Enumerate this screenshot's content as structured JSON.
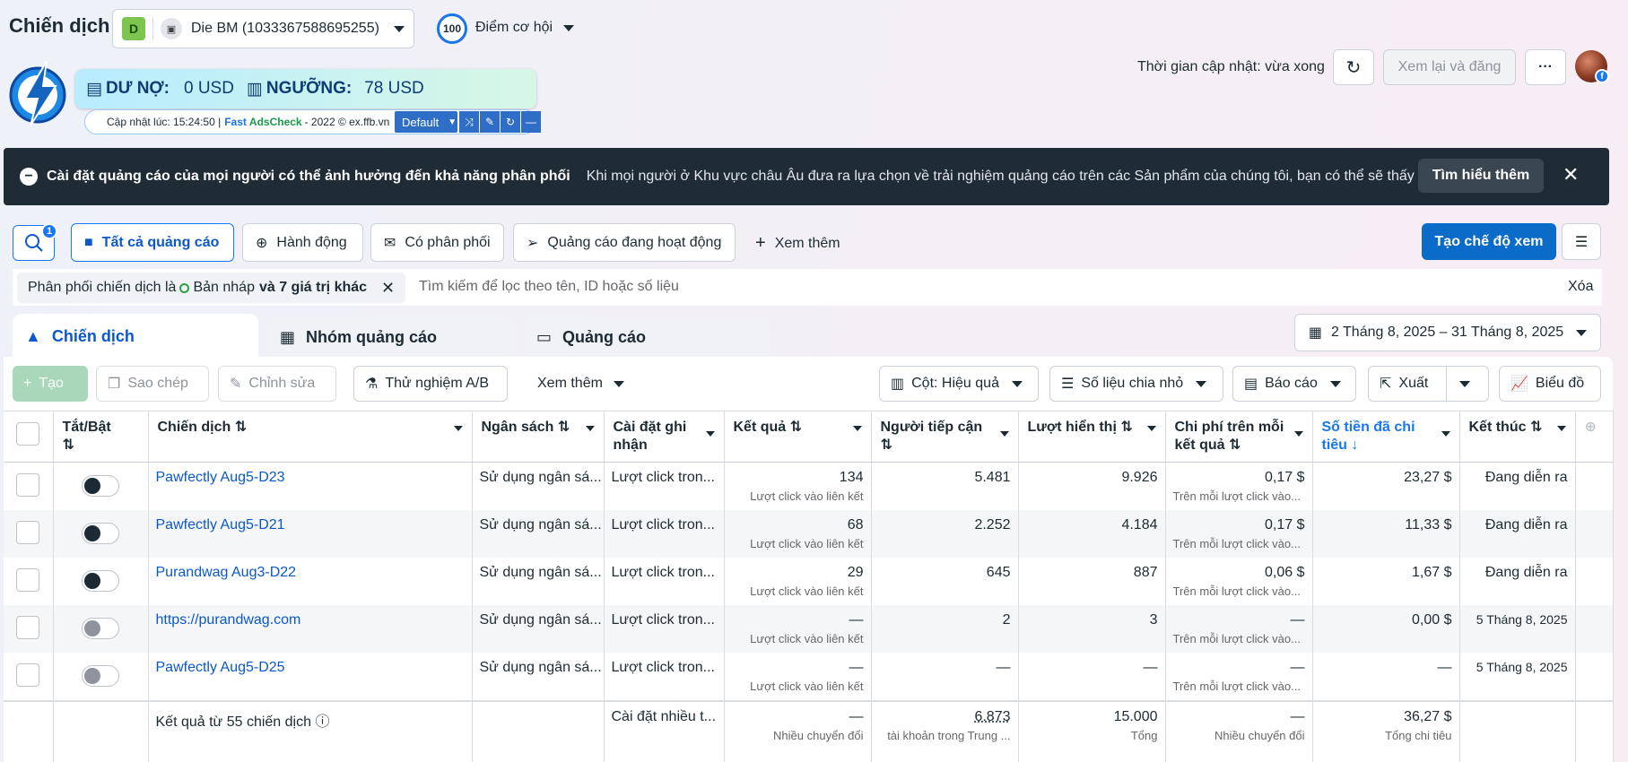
{
  "header": {
    "title": "Chiến dịch",
    "account_badge": "D",
    "account_name": "Die BM (1033367588695255)",
    "score": "100",
    "score_label": "Điểm cơ hội",
    "update_time": "Thời gian cập nhật: vừa xong",
    "review_publish": "Xem lại và đăng",
    "more": "···"
  },
  "extension": {
    "debt_label": "DƯ NỢ:",
    "debt_value": "0 USD",
    "threshold_label": "NGƯỠNG:",
    "threshold_value": "78 USD",
    "updated_at": "Cập nhật lúc: 15:24:50 |",
    "brand1": "Fast",
    "brand2": "AdsCheck",
    "brand_suffix": "- 2022 © ex.ffb.vn",
    "preset": "Default"
  },
  "notice": {
    "title": "Cài đặt quảng cáo của mọi người có thể ảnh hưởng đến khả năng phân phối",
    "body": "Khi mọi người ở Khu vực châu Âu đưa ra lựa chọn về trải nghiệm quảng cáo trên các Sản phẩm của chúng tôi, bạn có thể sẽ thấy tác...",
    "learn_more": "Tìm hiểu thêm"
  },
  "filters": {
    "search_count": "1",
    "chips": [
      "Tất cả quảng cáo",
      "Hành động",
      "Có phân phối",
      "Quảng cáo đang hoạt động"
    ],
    "see_more": "Xem thêm",
    "create_view": "Tạo chế độ xem",
    "active_filter_prefix": "Phân phối chiến dịch là",
    "active_filter_value": "Bản nháp",
    "active_filter_more": "và 7 giá trị khác",
    "search_placeholder": "Tìm kiếm để lọc theo tên, ID hoặc số liệu",
    "clear": "Xóa"
  },
  "tabs": [
    "Chiến dịch",
    "Nhóm quảng cáo",
    "Quảng cáo"
  ],
  "date_range": "2 Tháng 8, 2025 – 31 Tháng 8, 2025",
  "toolbar": {
    "create": "Tạo",
    "copy": "Sao chép",
    "edit": "Chỉnh sửa",
    "ab_test": "Thử nghiệm A/B",
    "see_more": "Xem thêm",
    "columns": "Cột: Hiệu quả",
    "breakdown": "Số liệu chia nhỏ",
    "reports": "Báo cáo",
    "export": "Xuất",
    "charts": "Biểu đồ"
  },
  "table": {
    "headers": {
      "toggle": "Tắt/Bật",
      "campaign": "Chiến dịch",
      "budget": "Ngân sách",
      "attribution": "Cài đặt ghi nhận",
      "results": "Kết quả",
      "reach": "Người tiếp cận",
      "impressions": "Lượt hiển thị",
      "cost_per_result": "Chi phí trên mỗi kết quả",
      "amount_spent": "Số tiền đã chi tiêu",
      "ends": "Kết thúc"
    },
    "rows": [
      {
        "name": "Pawfectly Aug5-D23",
        "budget": "Sử dụng ngân sá...",
        "attribution": "Lượt click tron...",
        "results": "134",
        "results_sub": "Lượt click vào liên kết",
        "reach": "5.481",
        "impressions": "9.926",
        "cpr": "0,17 $",
        "cpr_sub": "Trên mỗi lượt click vào...",
        "spent": "23,27 $",
        "ends": "Đang diễn ra",
        "on": true
      },
      {
        "name": "Pawfectly Aug5-D21",
        "budget": "Sử dụng ngân sá...",
        "attribution": "Lượt click tron...",
        "results": "68",
        "results_sub": "Lượt click vào liên kết",
        "reach": "2.252",
        "impressions": "4.184",
        "cpr": "0,17 $",
        "cpr_sub": "Trên mỗi lượt click vào...",
        "spent": "11,33 $",
        "ends": "Đang diễn ra",
        "on": true
      },
      {
        "name": "Purandwag Aug3-D22",
        "budget": "Sử dụng ngân sá...",
        "attribution": "Lượt click tron...",
        "results": "29",
        "results_sub": "Lượt click vào liên kết",
        "reach": "645",
        "impressions": "887",
        "cpr": "0,06 $",
        "cpr_sub": "Trên mỗi lượt click vào...",
        "spent": "1,67 $",
        "ends": "Đang diễn ra",
        "on": true
      },
      {
        "name": "https://purandwag.com",
        "budget": "Sử dụng ngân sá...",
        "attribution": "Lượt click tron...",
        "results": "—",
        "results_sub": "Lượt click vào liên kết",
        "reach": "2",
        "impressions": "3",
        "cpr": "—",
        "cpr_sub": "Trên mỗi lượt click vào...",
        "spent": "0,00 $",
        "ends": "5 Tháng 8, 2025",
        "on": false
      },
      {
        "name": "Pawfectly Aug5-D25",
        "budget": "Sử dụng ngân sá...",
        "attribution": "Lượt click tron...",
        "results": "—",
        "results_sub": "Lượt click vào liên kết",
        "reach": "—",
        "impressions": "—",
        "cpr": "—",
        "cpr_sub": "Trên mỗi lượt click vào...",
        "spent": "—",
        "ends": "5 Tháng 8, 2025",
        "on": false
      }
    ],
    "summary": {
      "label": "Kết quả từ 55 chiến dịch",
      "attribution": "Cài đặt nhiều t...",
      "results": "—",
      "results_sub": "Nhiều chuyển đổi",
      "reach": "6.873",
      "reach_sub": "tài khoản trong Trung ...",
      "impressions": "15.000",
      "impressions_sub": "Tổng",
      "cpr": "—",
      "cpr_sub": "Nhiều chuyển đổi",
      "spent": "36,27 $",
      "spent_sub": "Tổng chi tiêu"
    }
  },
  "colors": {
    "primary": "#0a6bc9",
    "link": "#0a58ca",
    "banner": "#1f2b35"
  }
}
